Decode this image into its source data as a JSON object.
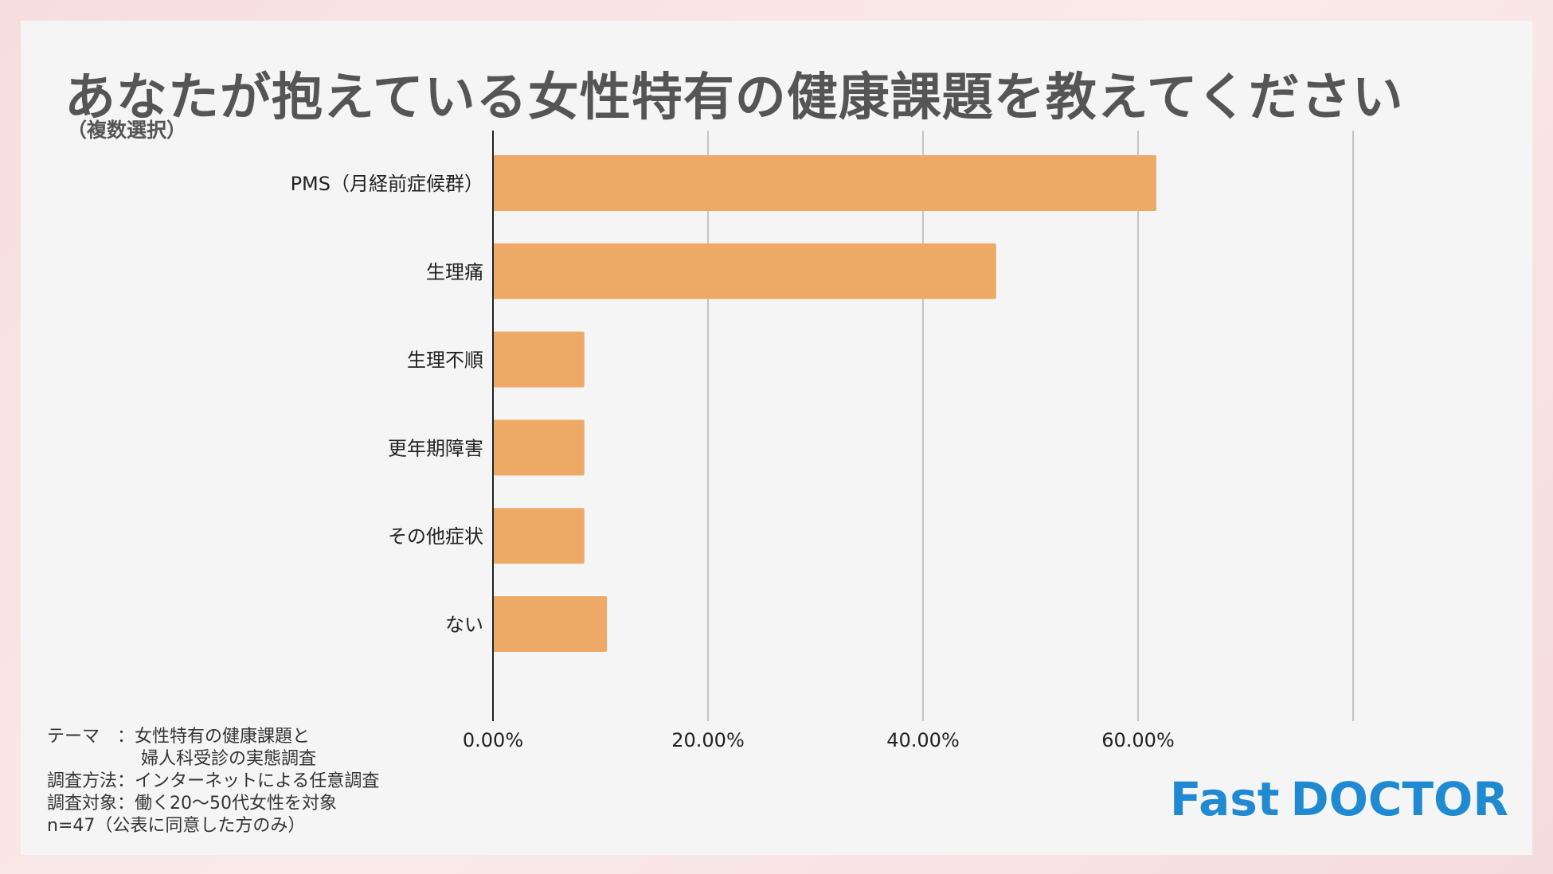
{
  "header": {
    "title": "あなたが抱えている女性特有の健康課題を教えてください",
    "subtitle": "（複数選択）"
  },
  "chart_data": {
    "type": "bar",
    "orientation": "horizontal",
    "categories": [
      "PMS（月経前症候群）",
      "生理痛",
      "生理不順",
      "更年期障害",
      "その他症状",
      "ない"
    ],
    "values": [
      61.7,
      46.8,
      8.5,
      8.5,
      8.5,
      10.6
    ],
    "unit": "%",
    "xlim": [
      0,
      80
    ],
    "xticks": [
      0,
      20,
      40,
      60,
      80
    ],
    "xtick_labels": [
      "0.00%",
      "20.00%",
      "40.00%",
      "60.00%",
      ""
    ],
    "grid": true,
    "bar_color": "#edaa66",
    "grid_color": "#c4c4c4"
  },
  "notes": {
    "theme_label": "テーマ　：",
    "theme_line1": "女性特有の健康課題と",
    "theme_line2": "婦人科受診の実態調査",
    "method": "調査方法：インターネットによる任意調査",
    "target": "調査対象：働く20〜50代女性を対象",
    "sample": "n=47（公表に同意した方のみ）"
  },
  "brand": {
    "word1": "Fast",
    "word2": "DOCTOR",
    "color": "#1f8ad1"
  }
}
